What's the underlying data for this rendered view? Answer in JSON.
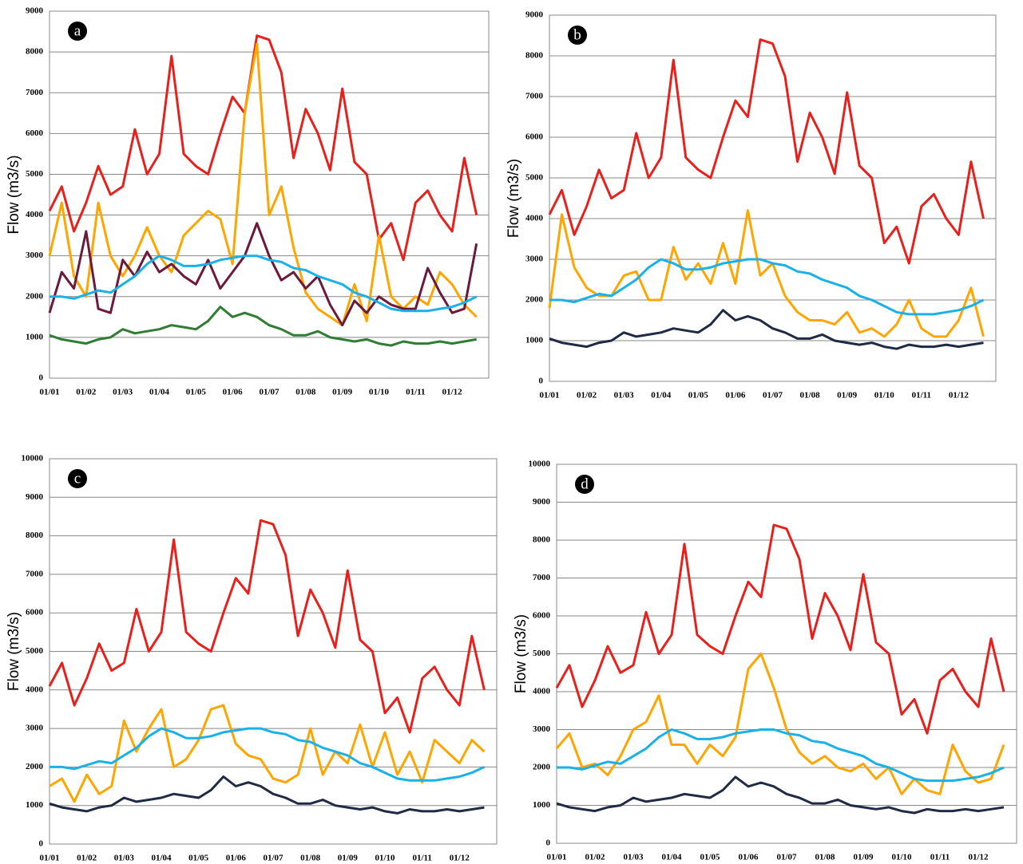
{
  "chart_data": [
    {
      "type": "line",
      "panel_label": "a",
      "y_label": "Flow (m3/s)",
      "categories": [
        "01/01",
        null,
        null,
        "01/02",
        null,
        null,
        "01/03",
        null,
        null,
        "01/04",
        null,
        null,
        "01/05",
        null,
        null,
        "01/06",
        null,
        null,
        "01/07",
        null,
        null,
        "01/08",
        null,
        null,
        "01/09",
        null,
        null,
        "01/10",
        null,
        null,
        "01/11",
        null,
        null,
        "01/12",
        null,
        null
      ],
      "ylim": [
        0,
        9000
      ],
      "yticks": [
        0,
        1000,
        2000,
        3000,
        4000,
        5000,
        6000,
        7000,
        8000,
        9000
      ],
      "grid": true,
      "series": [
        {
          "color": "#e8201c",
          "values": [
            4100,
            4700,
            3600,
            4300,
            5200,
            4500,
            4700,
            6100,
            5000,
            5500,
            7900,
            5500,
            5200,
            5000,
            6000,
            6900,
            6500,
            8400,
            8300,
            7500,
            5400,
            6600,
            6000,
            5100,
            7100,
            5300,
            5000,
            3400,
            3800,
            2900,
            4300,
            4600,
            4000,
            3600,
            5400,
            4000
          ]
        },
        {
          "color": "#ffa500",
          "values": [
            3000,
            4300,
            2500,
            2000,
            4300,
            3000,
            2500,
            3000,
            3700,
            3000,
            2600,
            3500,
            3800,
            4100,
            3900,
            2800,
            6500,
            8200,
            4000,
            4700,
            3200,
            2100,
            1700,
            1500,
            1300,
            2300,
            1400,
            3500,
            2000,
            1700,
            2000,
            1800,
            2600,
            2300,
            1800,
            1500
          ]
        },
        {
          "color": "#6b1a3a",
          "values": [
            1600,
            2600,
            2200,
            3600,
            1700,
            1600,
            2900,
            2500,
            3100,
            2600,
            2800,
            2500,
            2300,
            2900,
            2200,
            2600,
            3000,
            3800,
            3000,
            2400,
            2600,
            2200,
            2500,
            1800,
            1300,
            1900,
            1600,
            2000,
            1800,
            1700,
            1700,
            2700,
            2100,
            1600,
            1700,
            3300
          ]
        },
        {
          "color": "#1ab0e8",
          "values": [
            2000,
            2000,
            1950,
            2050,
            2150,
            2100,
            2300,
            2500,
            2800,
            3000,
            2900,
            2750,
            2750,
            2800,
            2900,
            2950,
            3000,
            3000,
            2900,
            2850,
            2700,
            2650,
            2500,
            2400,
            2300,
            2100,
            2000,
            1850,
            1700,
            1650,
            1650,
            1650,
            1700,
            1750,
            1850,
            2000
          ]
        },
        {
          "color": "#2e7d32",
          "values": [
            1050,
            950,
            900,
            850,
            950,
            1000,
            1200,
            1100,
            1150,
            1200,
            1300,
            1250,
            1200,
            1400,
            1750,
            1500,
            1600,
            1500,
            1300,
            1200,
            1050,
            1050,
            1150,
            1000,
            950,
            900,
            950,
            850,
            800,
            900,
            850,
            850,
            900,
            850,
            900,
            950
          ]
        }
      ]
    },
    {
      "type": "line",
      "panel_label": "b",
      "y_label": "Flow (m3/s)",
      "categories": [
        "01/01",
        null,
        null,
        "01/02",
        null,
        null,
        "01/03",
        null,
        null,
        "01/04",
        null,
        null,
        "01/05",
        null,
        null,
        "01/06",
        null,
        null,
        "01/07",
        null,
        null,
        "01/08",
        null,
        null,
        "01/09",
        null,
        null,
        "01/10",
        null,
        null,
        "01/11",
        null,
        null,
        "01/12",
        null,
        null
      ],
      "ylim": [
        0,
        9000
      ],
      "yticks": [
        0,
        1000,
        2000,
        3000,
        4000,
        5000,
        6000,
        7000,
        8000,
        9000
      ],
      "grid": true,
      "series": [
        {
          "color": "#e8201c",
          "values": [
            4100,
            4700,
            3600,
            4300,
            5200,
            4500,
            4700,
            6100,
            5000,
            5500,
            7900,
            5500,
            5200,
            5000,
            6000,
            6900,
            6500,
            8400,
            8300,
            7500,
            5400,
            6600,
            6000,
            5100,
            7100,
            5300,
            5000,
            3400,
            3800,
            2900,
            4300,
            4600,
            4000,
            3600,
            5400,
            4000
          ]
        },
        {
          "color": "#ffa500",
          "values": [
            1800,
            4100,
            2800,
            2300,
            2100,
            2100,
            2600,
            2700,
            2000,
            2000,
            3300,
            2500,
            2900,
            2400,
            3400,
            2400,
            4200,
            2600,
            2900,
            2100,
            1700,
            1500,
            1500,
            1400,
            1700,
            1200,
            1300,
            1100,
            1400,
            2000,
            1300,
            1100,
            1100,
            1500,
            2300,
            1100
          ]
        },
        {
          "color": "#1ab0e8",
          "values": [
            2000,
            2000,
            1950,
            2050,
            2150,
            2100,
            2300,
            2500,
            2800,
            3000,
            2900,
            2750,
            2750,
            2800,
            2900,
            2950,
            3000,
            3000,
            2900,
            2850,
            2700,
            2650,
            2500,
            2400,
            2300,
            2100,
            2000,
            1850,
            1700,
            1650,
            1650,
            1650,
            1700,
            1750,
            1850,
            2000
          ]
        },
        {
          "color": "#1f2a44",
          "values": [
            1050,
            950,
            900,
            850,
            950,
            1000,
            1200,
            1100,
            1150,
            1200,
            1300,
            1250,
            1200,
            1400,
            1750,
            1500,
            1600,
            1500,
            1300,
            1200,
            1050,
            1050,
            1150,
            1000,
            950,
            900,
            950,
            850,
            800,
            900,
            850,
            850,
            900,
            850,
            900,
            950
          ]
        }
      ]
    },
    {
      "type": "line",
      "panel_label": "c",
      "y_label": "Flow (m3/s)",
      "categories": [
        "01/01",
        null,
        null,
        "01/02",
        null,
        null,
        "01/03",
        null,
        null,
        "01/04",
        null,
        null,
        "01/05",
        null,
        null,
        "01/06",
        null,
        null,
        "01/07",
        null,
        null,
        "01/08",
        null,
        null,
        "01/09",
        null,
        null,
        "01/10",
        null,
        null,
        "01/11",
        null,
        null,
        "01/12",
        null,
        null
      ],
      "ylim": [
        0,
        10000
      ],
      "yticks": [
        0,
        1000,
        2000,
        3000,
        4000,
        5000,
        6000,
        7000,
        8000,
        9000,
        10000
      ],
      "grid": true,
      "series": [
        {
          "color": "#e8201c",
          "values": [
            4100,
            4700,
            3600,
            4300,
            5200,
            4500,
            4700,
            6100,
            5000,
            5500,
            7900,
            5500,
            5200,
            5000,
            6000,
            6900,
            6500,
            8400,
            8300,
            7500,
            5400,
            6600,
            6000,
            5100,
            7100,
            5300,
            5000,
            3400,
            3800,
            2900,
            4300,
            4600,
            4000,
            3600,
            5400,
            4000
          ]
        },
        {
          "color": "#ffa500",
          "values": [
            1500,
            1700,
            1100,
            1800,
            1300,
            1500,
            3200,
            2400,
            3000,
            3500,
            2000,
            2200,
            2700,
            3500,
            3600,
            2600,
            2300,
            2200,
            1700,
            1600,
            1800,
            3000,
            1800,
            2400,
            2100,
            3100,
            2000,
            2900,
            1800,
            2400,
            1600,
            2700,
            2400,
            2100,
            2700,
            2400
          ]
        },
        {
          "color": "#1ab0e8",
          "values": [
            2000,
            2000,
            1950,
            2050,
            2150,
            2100,
            2300,
            2500,
            2800,
            3000,
            2900,
            2750,
            2750,
            2800,
            2900,
            2950,
            3000,
            3000,
            2900,
            2850,
            2700,
            2650,
            2500,
            2400,
            2300,
            2100,
            2000,
            1850,
            1700,
            1650,
            1650,
            1650,
            1700,
            1750,
            1850,
            2000
          ]
        },
        {
          "color": "#1f2a44",
          "values": [
            1050,
            950,
            900,
            850,
            950,
            1000,
            1200,
            1100,
            1150,
            1200,
            1300,
            1250,
            1200,
            1400,
            1750,
            1500,
            1600,
            1500,
            1300,
            1200,
            1050,
            1050,
            1150,
            1000,
            950,
            900,
            950,
            850,
            800,
            900,
            850,
            850,
            900,
            850,
            900,
            950
          ]
        }
      ]
    },
    {
      "type": "line",
      "panel_label": "d",
      "y_label": "Flow (m3/s)",
      "categories": [
        "01/01",
        null,
        null,
        "01/02",
        null,
        null,
        "01/03",
        null,
        null,
        "01/04",
        null,
        null,
        "01/05",
        null,
        null,
        "01/06",
        null,
        null,
        "01/07",
        null,
        null,
        "01/08",
        null,
        null,
        "01/09",
        null,
        null,
        "01/10",
        null,
        null,
        "01/11",
        null,
        null,
        "01/12",
        null,
        null
      ],
      "ylim": [
        0,
        10000
      ],
      "yticks": [
        0,
        1000,
        2000,
        3000,
        4000,
        5000,
        6000,
        7000,
        8000,
        9000,
        10000
      ],
      "grid": true,
      "series": [
        {
          "color": "#e8201c",
          "values": [
            4100,
            4700,
            3600,
            4300,
            5200,
            4500,
            4700,
            6100,
            5000,
            5500,
            7900,
            5500,
            5200,
            5000,
            6000,
            6900,
            6500,
            8400,
            8300,
            7500,
            5400,
            6600,
            6000,
            5100,
            7100,
            5300,
            5000,
            3400,
            3800,
            2900,
            4300,
            4600,
            4000,
            3600,
            5400,
            4000
          ]
        },
        {
          "color": "#ffa500",
          "values": [
            2500,
            2900,
            2000,
            2100,
            1800,
            2300,
            3000,
            3200,
            3900,
            2600,
            2600,
            2100,
            2600,
            2300,
            2800,
            4600,
            5000,
            4100,
            3000,
            2400,
            2100,
            2300,
            2000,
            1900,
            2100,
            1700,
            2000,
            1300,
            1700,
            1400,
            1300,
            2600,
            1900,
            1600,
            1700,
            2600
          ]
        },
        {
          "color": "#1ab0e8",
          "values": [
            2000,
            2000,
            1950,
            2050,
            2150,
            2100,
            2300,
            2500,
            2800,
            3000,
            2900,
            2750,
            2750,
            2800,
            2900,
            2950,
            3000,
            3000,
            2900,
            2850,
            2700,
            2650,
            2500,
            2400,
            2300,
            2100,
            2000,
            1850,
            1700,
            1650,
            1650,
            1650,
            1700,
            1750,
            1850,
            2000
          ]
        },
        {
          "color": "#1f2a44",
          "values": [
            1050,
            950,
            900,
            850,
            950,
            1000,
            1200,
            1100,
            1150,
            1200,
            1300,
            1250,
            1200,
            1400,
            1750,
            1500,
            1600,
            1500,
            1300,
            1200,
            1050,
            1050,
            1150,
            1000,
            950,
            900,
            950,
            850,
            800,
            900,
            850,
            850,
            900,
            850,
            900,
            950
          ]
        }
      ]
    }
  ]
}
